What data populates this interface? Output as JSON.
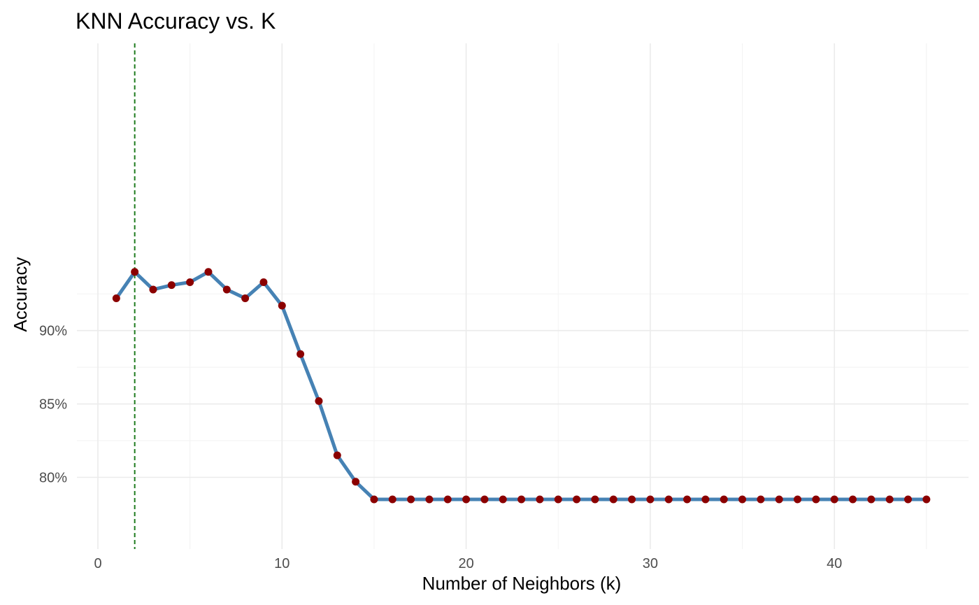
{
  "chart_data": {
    "type": "line",
    "title": "KNN Accuracy vs. K",
    "xlabel": "Number of Neighbors (k)",
    "ylabel": "Accuracy",
    "xlim": [
      0,
      45
    ],
    "ylim": [
      0.785,
      0.94
    ],
    "x_ticks": [
      0,
      10,
      20,
      30,
      40
    ],
    "x_tick_labels": [
      "0",
      "10",
      "20",
      "30",
      "40"
    ],
    "y_ticks": [
      0.8,
      0.85,
      0.9
    ],
    "y_tick_labels": [
      "80%",
      "85%",
      "90%"
    ],
    "grid": true,
    "legend": "none",
    "best_k": 2,
    "colors": {
      "line": "#4682b4",
      "point": "#8b0000",
      "best_k_line": "#1e7b1e",
      "grid": "#ebebeb"
    },
    "series": [
      {
        "x": [
          1,
          2,
          3,
          4,
          5,
          6,
          7,
          8,
          9,
          10,
          11,
          12,
          13,
          14,
          15,
          16,
          17,
          18,
          19,
          20,
          21,
          22,
          23,
          24,
          25,
          26,
          27,
          28,
          29,
          30,
          31,
          32,
          33,
          34,
          35,
          36,
          37,
          38,
          39,
          40,
          41,
          42,
          43,
          44,
          45
        ],
        "values": [
          0.922,
          0.94,
          0.928,
          0.931,
          0.933,
          0.94,
          0.928,
          0.922,
          0.933,
          0.917,
          0.884,
          0.852,
          0.815,
          0.797,
          0.785,
          0.785,
          0.785,
          0.785,
          0.785,
          0.785,
          0.785,
          0.785,
          0.785,
          0.785,
          0.785,
          0.785,
          0.785,
          0.785,
          0.785,
          0.785,
          0.785,
          0.785,
          0.785,
          0.785,
          0.785,
          0.785,
          0.785,
          0.785,
          0.785,
          0.785,
          0.785,
          0.785,
          0.785,
          0.785,
          0.785
        ]
      }
    ]
  }
}
